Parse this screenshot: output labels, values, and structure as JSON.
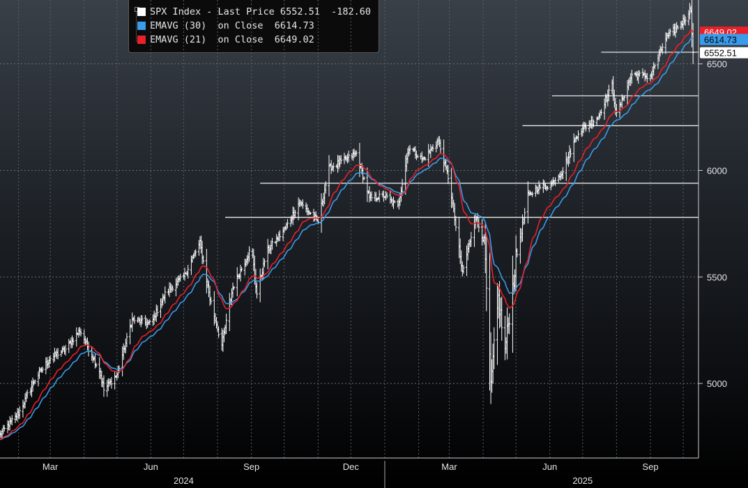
{
  "legend": {
    "items": [
      {
        "text": "SPX Index - Last Price 6552.51  -182.60",
        "color": "#ffffff"
      },
      {
        "text": "EMAVG (30)  on Close  6614.73",
        "color": "#3a9bea"
      },
      {
        "text": "EMAVG (21)  on Close  6649.02",
        "color": "#e8202a"
      }
    ]
  },
  "chart_data": {
    "type": "line",
    "title": "",
    "ylim": [
      4650,
      6800
    ],
    "y_ticks": [
      "5000",
      "5500",
      "6000",
      "6500"
    ],
    "y_tick_values": [
      5000,
      5500,
      6000,
      6500
    ],
    "x_ticks": [
      "Mar",
      "Jun",
      "Sep",
      "Dec",
      "Mar",
      "Jun",
      "Sep"
    ],
    "x_tick_dates": [
      "2024-03-01",
      "2024-06-01",
      "2024-09-01",
      "2024-12-01",
      "2025-03-01",
      "2025-06-01",
      "2025-09-01"
    ],
    "x_years": [
      {
        "label": "2024",
        "date": "2024-07-01"
      },
      {
        "label": "2025",
        "date": "2025-07-01"
      }
    ],
    "x_range": [
      "2024-01-15",
      "2025-10-15"
    ],
    "grid": true,
    "price_anchor_dates": [
      "2024-01-15",
      "2024-02-01",
      "2024-02-15",
      "2024-03-01",
      "2024-03-15",
      "2024-03-28",
      "2024-04-15",
      "2024-04-19",
      "2024-05-01",
      "2024-05-15",
      "2024-06-01",
      "2024-06-15",
      "2024-07-01",
      "2024-07-16",
      "2024-07-25",
      "2024-08-05",
      "2024-08-15",
      "2024-09-01",
      "2024-09-06",
      "2024-09-15",
      "2024-10-01",
      "2024-10-15",
      "2024-11-01",
      "2024-11-11",
      "2024-12-06",
      "2024-12-18",
      "2025-01-01",
      "2025-01-13",
      "2025-01-23",
      "2025-02-05",
      "2025-02-19",
      "2025-03-01",
      "2025-03-13",
      "2025-03-25",
      "2025-04-02",
      "2025-04-08",
      "2025-04-15",
      "2025-04-21",
      "2025-05-01",
      "2025-05-12",
      "2025-05-21",
      "2025-06-01",
      "2025-06-13",
      "2025-06-27",
      "2025-07-15",
      "2025-07-28",
      "2025-08-01",
      "2025-08-15",
      "2025-09-01",
      "2025-09-15",
      "2025-10-01",
      "2025-10-08",
      "2025-10-10"
    ],
    "price_anchor_values": [
      4760,
      4860,
      5010,
      5120,
      5160,
      5250,
      5060,
      4970,
      5040,
      5300,
      5280,
      5430,
      5500,
      5660,
      5400,
      5180,
      5450,
      5640,
      5420,
      5620,
      5720,
      5850,
      5760,
      6010,
      6080,
      5870,
      5880,
      5830,
      6110,
      6050,
      6140,
      5950,
      5520,
      5780,
      5670,
      4980,
      5400,
      5150,
      5580,
      5880,
      5920,
      5930,
      6000,
      6180,
      6250,
      6400,
      6260,
      6450,
      6440,
      6620,
      6700,
      6760,
      6552.51
    ],
    "hlines": [
      {
        "value": 5780,
        "from": "2024-08-08"
      },
      {
        "value": 5940,
        "from": "2024-09-09"
      },
      {
        "value": 6210,
        "from": "2025-05-07"
      },
      {
        "value": 6350,
        "from": "2025-06-03"
      },
      {
        "value": 6555,
        "from": "2025-07-18"
      }
    ],
    "series": [
      {
        "name": "SPX Index - Last Price",
        "color": "#ffffff",
        "last": "6552.51",
        "change": "-182.60"
      },
      {
        "name": "EMAVG (30) on Close",
        "color": "#3a9bea",
        "period": 30,
        "last": "6614.73"
      },
      {
        "name": "EMAVG (21) on Close",
        "color": "#e8202a",
        "period": 21,
        "last": "6649.02"
      }
    ],
    "price_labels": [
      {
        "text": "6649.02",
        "value": 6649.02,
        "color": "#e8202a"
      },
      {
        "text": "6614.73",
        "value": 6614.73,
        "color": "#3a9bea"
      },
      {
        "text": "6552.51",
        "value": 6552.51,
        "color": "#ffffff"
      }
    ]
  }
}
